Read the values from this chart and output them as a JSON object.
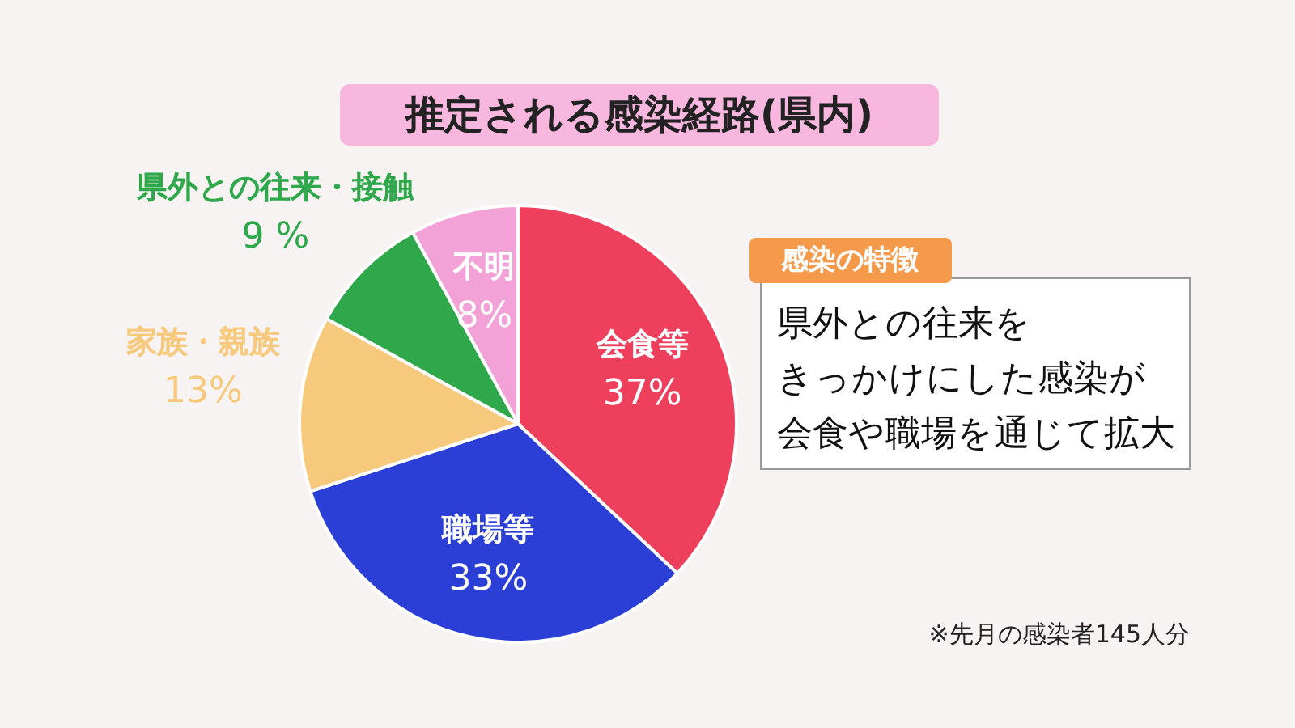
{
  "chart_data": {
    "type": "pie",
    "title": "推定される感染経路(県内)",
    "categories": [
      "会食等",
      "職場等",
      "家族・親族",
      "県外との往来・接触",
      "不明"
    ],
    "values": [
      37,
      33,
      13,
      9,
      8
    ],
    "value_labels": [
      "37%",
      "33%",
      "13%",
      "9 %",
      "8%"
    ],
    "colors": [
      "#ee3f5c",
      "#2b3fd6",
      "#f6c97c",
      "#2fa84b",
      "#f2a2d6"
    ],
    "annotations": [
      "感染の特徴",
      "県外との往来を",
      "きっかけにした感染が",
      "会食や職場を通じて拡大",
      "※先月の感染者145人分"
    ]
  }
}
